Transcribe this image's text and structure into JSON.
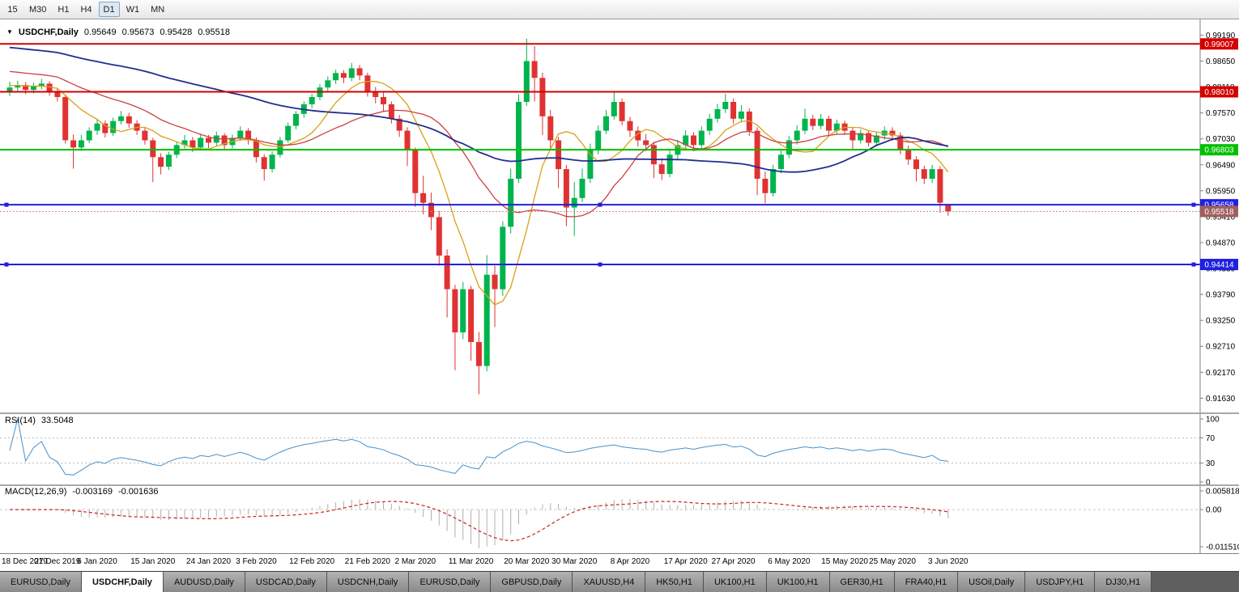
{
  "toolbar": {
    "timeframes": [
      {
        "label": "15",
        "active": false
      },
      {
        "label": "M30",
        "active": false
      },
      {
        "label": "H1",
        "active": false
      },
      {
        "label": "H4",
        "active": false
      },
      {
        "label": "D1",
        "active": true
      },
      {
        "label": "W1",
        "active": false
      },
      {
        "label": "MN",
        "active": false
      }
    ]
  },
  "chart_header": {
    "dropdown_icon": "▼",
    "symbol": "USDCHF,Daily",
    "open": "0.95649",
    "high": "0.95673",
    "low": "0.95428",
    "close": "0.95518"
  },
  "chart_data": {
    "type": "candlestick",
    "title": "USDCHF,Daily",
    "ylim": [
      0.914,
      0.9945
    ],
    "y_ticks": [
      "0.99190",
      "0.98650",
      "0.98110",
      "0.97570",
      "0.97030",
      "0.96490",
      "0.95950",
      "0.95410",
      "0.94870",
      "0.94330",
      "0.93790",
      "0.93250",
      "0.92710",
      "0.92170",
      "0.91630"
    ],
    "up_color": "#00b44c",
    "down_color": "#e03232",
    "candles": [
      [
        0.98,
        0.9822,
        0.9792,
        0.981
      ],
      [
        0.981,
        0.9824,
        0.98,
        0.9815
      ],
      [
        0.9815,
        0.9821,
        0.9796,
        0.9805
      ],
      [
        0.9805,
        0.982,
        0.9798,
        0.9812
      ],
      [
        0.9812,
        0.9828,
        0.9806,
        0.9818
      ],
      [
        0.9818,
        0.9823,
        0.9793,
        0.98
      ],
      [
        0.98,
        0.9808,
        0.9781,
        0.979
      ],
      [
        0.979,
        0.9796,
        0.9693,
        0.97
      ],
      [
        0.97,
        0.9712,
        0.9641,
        0.9685
      ],
      [
        0.9685,
        0.9711,
        0.9678,
        0.97
      ],
      [
        0.97,
        0.9727,
        0.9694,
        0.972
      ],
      [
        0.972,
        0.9743,
        0.9711,
        0.9735
      ],
      [
        0.9735,
        0.9741,
        0.9706,
        0.9715
      ],
      [
        0.9715,
        0.9747,
        0.9709,
        0.974
      ],
      [
        0.974,
        0.9761,
        0.9733,
        0.975
      ],
      [
        0.975,
        0.9757,
        0.9726,
        0.9735
      ],
      [
        0.9735,
        0.9742,
        0.9711,
        0.972
      ],
      [
        0.972,
        0.9726,
        0.9691,
        0.97
      ],
      [
        0.97,
        0.9705,
        0.9613,
        0.9665
      ],
      [
        0.9665,
        0.9673,
        0.9629,
        0.9645
      ],
      [
        0.9645,
        0.9676,
        0.9638,
        0.967
      ],
      [
        0.967,
        0.9697,
        0.9663,
        0.969
      ],
      [
        0.969,
        0.9711,
        0.9683,
        0.97
      ],
      [
        0.97,
        0.9707,
        0.9676,
        0.9685
      ],
      [
        0.9685,
        0.9713,
        0.9679,
        0.9705
      ],
      [
        0.9705,
        0.9711,
        0.9684,
        0.9695
      ],
      [
        0.9695,
        0.9718,
        0.9689,
        0.971
      ],
      [
        0.971,
        0.9715,
        0.9682,
        0.969
      ],
      [
        0.969,
        0.9712,
        0.9683,
        0.9705
      ],
      [
        0.9705,
        0.9729,
        0.9699,
        0.972
      ],
      [
        0.972,
        0.9725,
        0.9691,
        0.97
      ],
      [
        0.97,
        0.9706,
        0.9654,
        0.9665
      ],
      [
        0.9665,
        0.9671,
        0.9616,
        0.964
      ],
      [
        0.964,
        0.9677,
        0.9633,
        0.967
      ],
      [
        0.967,
        0.9707,
        0.9664,
        0.97
      ],
      [
        0.97,
        0.9737,
        0.9695,
        0.973
      ],
      [
        0.973,
        0.9761,
        0.9723,
        0.9755
      ],
      [
        0.9755,
        0.9781,
        0.9747,
        0.9775
      ],
      [
        0.9775,
        0.9797,
        0.9767,
        0.979
      ],
      [
        0.979,
        0.9817,
        0.9783,
        0.981
      ],
      [
        0.981,
        0.9833,
        0.9801,
        0.9825
      ],
      [
        0.9825,
        0.9847,
        0.9817,
        0.984
      ],
      [
        0.984,
        0.9846,
        0.9819,
        0.983
      ],
      [
        0.983,
        0.9861,
        0.9823,
        0.985
      ],
      [
        0.985,
        0.9857,
        0.9825,
        0.9835
      ],
      [
        0.9835,
        0.9841,
        0.9791,
        0.98
      ],
      [
        0.98,
        0.9811,
        0.9777,
        0.979
      ],
      [
        0.979,
        0.9799,
        0.9761,
        0.9775
      ],
      [
        0.9775,
        0.9781,
        0.9735,
        0.9745
      ],
      [
        0.9745,
        0.9753,
        0.9707,
        0.972
      ],
      [
        0.972,
        0.9727,
        0.9646,
        0.968
      ],
      [
        0.968,
        0.9685,
        0.9561,
        0.959
      ],
      [
        0.959,
        0.9626,
        0.9546,
        0.957
      ],
      [
        0.957,
        0.9591,
        0.9513,
        0.954
      ],
      [
        0.954,
        0.9553,
        0.9439,
        0.946
      ],
      [
        0.946,
        0.9473,
        0.9331,
        0.939
      ],
      [
        0.939,
        0.9399,
        0.9221,
        0.93
      ],
      [
        0.93,
        0.9405,
        0.9286,
        0.939
      ],
      [
        0.939,
        0.9397,
        0.9241,
        0.928
      ],
      [
        0.928,
        0.9301,
        0.9171,
        0.923
      ],
      [
        0.923,
        0.9461,
        0.9219,
        0.942
      ],
      [
        0.942,
        0.9439,
        0.9311,
        0.939
      ],
      [
        0.939,
        0.9531,
        0.9376,
        0.952
      ],
      [
        0.952,
        0.9641,
        0.9506,
        0.962
      ],
      [
        0.962,
        0.9796,
        0.9611,
        0.978
      ],
      [
        0.978,
        0.9912,
        0.9771,
        0.9865
      ],
      [
        0.9865,
        0.9896,
        0.9781,
        0.983
      ],
      [
        0.983,
        0.9841,
        0.9711,
        0.975
      ],
      [
        0.975,
        0.9763,
        0.9681,
        0.97
      ],
      [
        0.97,
        0.9707,
        0.9601,
        0.964
      ],
      [
        0.964,
        0.9649,
        0.9521,
        0.956
      ],
      [
        0.956,
        0.9613,
        0.9501,
        0.958
      ],
      [
        0.958,
        0.9641,
        0.9571,
        0.962
      ],
      [
        0.962,
        0.9693,
        0.9611,
        0.968
      ],
      [
        0.968,
        0.9731,
        0.9671,
        0.972
      ],
      [
        0.972,
        0.9763,
        0.9713,
        0.975
      ],
      [
        0.975,
        0.9801,
        0.9743,
        0.978
      ],
      [
        0.978,
        0.9787,
        0.9731,
        0.974
      ],
      [
        0.974,
        0.9749,
        0.9707,
        0.972
      ],
      [
        0.972,
        0.9729,
        0.9687,
        0.97
      ],
      [
        0.97,
        0.9713,
        0.9677,
        0.969
      ],
      [
        0.969,
        0.9697,
        0.9621,
        0.965
      ],
      [
        0.965,
        0.9663,
        0.9617,
        0.963
      ],
      [
        0.963,
        0.9679,
        0.9623,
        0.967
      ],
      [
        0.967,
        0.9701,
        0.9661,
        0.969
      ],
      [
        0.969,
        0.9721,
        0.9683,
        0.971
      ],
      [
        0.971,
        0.9717,
        0.9677,
        0.969
      ],
      [
        0.969,
        0.9729,
        0.9683,
        0.972
      ],
      [
        0.972,
        0.9755,
        0.9711,
        0.9745
      ],
      [
        0.9745,
        0.9776,
        0.9737,
        0.9765
      ],
      [
        0.9765,
        0.9797,
        0.9757,
        0.978
      ],
      [
        0.978,
        0.9787,
        0.9734,
        0.9745
      ],
      [
        0.9745,
        0.9773,
        0.9737,
        0.976
      ],
      [
        0.976,
        0.9767,
        0.9709,
        0.972
      ],
      [
        0.972,
        0.9727,
        0.9586,
        0.962
      ],
      [
        0.962,
        0.9635,
        0.9569,
        0.959
      ],
      [
        0.959,
        0.9649,
        0.9583,
        0.964
      ],
      [
        0.964,
        0.9681,
        0.9631,
        0.967
      ],
      [
        0.967,
        0.9709,
        0.9663,
        0.97
      ],
      [
        0.97,
        0.9731,
        0.9691,
        0.972
      ],
      [
        0.972,
        0.9766,
        0.9713,
        0.9745
      ],
      [
        0.9745,
        0.9753,
        0.9721,
        0.973
      ],
      [
        0.973,
        0.9755,
        0.9723,
        0.9745
      ],
      [
        0.9745,
        0.9751,
        0.9711,
        0.972
      ],
      [
        0.972,
        0.9743,
        0.9713,
        0.9735
      ],
      [
        0.9735,
        0.9741,
        0.9711,
        0.972
      ],
      [
        0.972,
        0.9727,
        0.9679,
        0.97
      ],
      [
        0.97,
        0.9723,
        0.9693,
        0.9715
      ],
      [
        0.9715,
        0.9721,
        0.9687,
        0.9695
      ],
      [
        0.9695,
        0.9717,
        0.9687,
        0.971
      ],
      [
        0.971,
        0.9729,
        0.9701,
        0.972
      ],
      [
        0.972,
        0.9727,
        0.9699,
        0.971
      ],
      [
        0.971,
        0.9717,
        0.9671,
        0.968
      ],
      [
        0.968,
        0.9689,
        0.9649,
        0.966
      ],
      [
        0.966,
        0.9667,
        0.9614,
        0.964
      ],
      [
        0.964,
        0.9647,
        0.9609,
        0.962
      ],
      [
        0.962,
        0.9649,
        0.9611,
        0.964
      ],
      [
        0.964,
        0.9646,
        0.9549,
        0.957
      ],
      [
        0.95649,
        0.95673,
        0.95428,
        0.95518
      ]
    ],
    "x_ticks": [
      {
        "i": 0,
        "label": "18 Dec 2019"
      },
      {
        "i": 6,
        "label": "27 Dec 2019"
      },
      {
        "i": 11,
        "label": "6 Jan 2020"
      },
      {
        "i": 18,
        "label": "15 Jan 2020"
      },
      {
        "i": 25,
        "label": "24 Jan 2020"
      },
      {
        "i": 31,
        "label": "3 Feb 2020"
      },
      {
        "i": 38,
        "label": "12 Feb 2020"
      },
      {
        "i": 45,
        "label": "21 Feb 2020"
      },
      {
        "i": 51,
        "label": "2 Mar 2020"
      },
      {
        "i": 58,
        "label": "11 Mar 2020"
      },
      {
        "i": 65,
        "label": "20 Mar 2020"
      },
      {
        "i": 71,
        "label": "30 Mar 2020"
      },
      {
        "i": 78,
        "label": "8 Apr 2020"
      },
      {
        "i": 85,
        "label": "17 Apr 2020"
      },
      {
        "i": 91,
        "label": "27 Apr 2020"
      },
      {
        "i": 98,
        "label": "6 May 2020"
      },
      {
        "i": 105,
        "label": "15 May 2020"
      },
      {
        "i": 111,
        "label": "25 May 2020"
      },
      {
        "i": 118,
        "label": "3 Jun 2020"
      }
    ],
    "hlines": [
      {
        "value": 0.99007,
        "label": "0.99007",
        "color": "#d40000",
        "handles": false
      },
      {
        "value": 0.9801,
        "label": "0.98010",
        "color": "#d40000",
        "handles": false
      },
      {
        "value": 0.96803,
        "label": "0.96803",
        "color": "#00c000",
        "handles": false
      },
      {
        "value": 0.95658,
        "label": "0.95658",
        "color": "#2020e0",
        "handles": true
      },
      {
        "value": 0.94414,
        "label": "0.94414",
        "color": "#2020e0",
        "handles": true
      }
    ],
    "price_line": {
      "value": 0.95518,
      "label": "0.95518",
      "line_color": "#c98f8f",
      "badge_color": "#a05f5f"
    },
    "moving_averages": [
      {
        "period": 8,
        "seed": 0.9815,
        "color": "#d9a017",
        "width": 1.3
      },
      {
        "period": 20,
        "seed": 0.9845,
        "color": "#cc4040",
        "width": 1.3
      },
      {
        "period": 50,
        "seed": 0.9895,
        "color": "#232e8f",
        "width": 1.8
      }
    ],
    "rsi": {
      "name": "RSI(14)",
      "value": "33.5048",
      "period": 14,
      "color": "#4a90c8",
      "levels": [
        70,
        30
      ],
      "y_ticks": [
        100,
        70,
        30,
        0
      ]
    },
    "macd": {
      "name": "MACD(12,26,9)",
      "value_main": "-0.003169",
      "value_signal": "-0.001636",
      "fast": 12,
      "slow": 26,
      "signal_period": 9,
      "ylim": [
        -0.0125,
        0.0063
      ],
      "y_ticks": [
        "0.005818",
        "0.00",
        "-0.011510"
      ],
      "hist_color": "#b0b0b0",
      "signal_color": "#cc2222"
    }
  },
  "bottom_tabs": {
    "tabs": [
      {
        "label": "EURUSD,Daily",
        "active": false
      },
      {
        "label": "USDCHF,Daily",
        "active": true
      },
      {
        "label": "AUDUSD,Daily",
        "active": false
      },
      {
        "label": "USDCAD,Daily",
        "active": false
      },
      {
        "label": "USDCNH,Daily",
        "active": false
      },
      {
        "label": "EURUSD,Daily",
        "active": false
      },
      {
        "label": "GBPUSD,Daily",
        "active": false
      },
      {
        "label": "XAUUSD,H4",
        "active": false
      },
      {
        "label": "HK50,H1",
        "active": false
      },
      {
        "label": "UK100,H1",
        "active": false
      },
      {
        "label": "UK100,H1",
        "active": false
      },
      {
        "label": "GER30,H1",
        "active": false
      },
      {
        "label": "FRA40,H1",
        "active": false
      },
      {
        "label": "USOil,Daily",
        "active": false
      },
      {
        "label": "USDJPY,H1",
        "active": false
      },
      {
        "label": "DJ30,H1",
        "active": false
      }
    ]
  }
}
